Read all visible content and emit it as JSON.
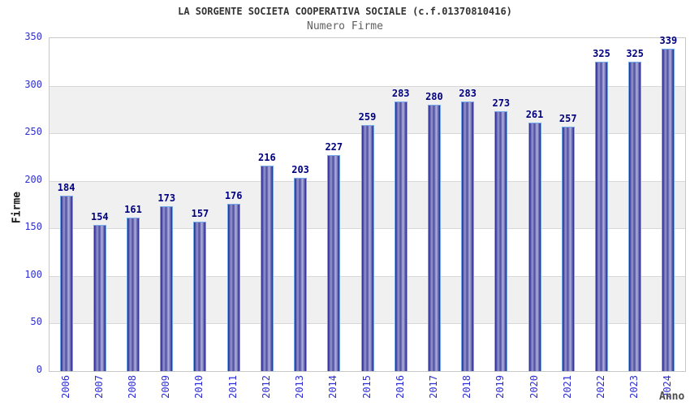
{
  "title": "LA SORGENTE SOCIETA COOPERATIVA SOCIALE (c.f.01370810416)",
  "subtitle": "Numero Firme",
  "chart_data": {
    "type": "bar",
    "title": "LA SORGENTE SOCIETA COOPERATIVA SOCIALE (c.f.01370810416)",
    "subtitle": "Numero Firme",
    "categories": [
      "2006",
      "2007",
      "2008",
      "2009",
      "2010",
      "2011",
      "2012",
      "2013",
      "2014",
      "2015",
      "2016",
      "2017",
      "2018",
      "2019",
      "2020",
      "2021",
      "2022",
      "2023",
      "2024"
    ],
    "values": [
      184,
      154,
      161,
      173,
      157,
      176,
      216,
      203,
      227,
      259,
      283,
      280,
      283,
      273,
      261,
      257,
      325,
      325,
      339
    ],
    "xlabel": "Anno",
    "ylabel": "Firme",
    "ylim": [
      0,
      350
    ],
    "ytick_step": 50,
    "yticks": [
      0,
      50,
      100,
      150,
      200,
      250,
      300,
      350
    ],
    "grid": true,
    "legend": "none",
    "colors": {
      "bar_dark": "#26268e",
      "bar_mid": "#4c4ca0",
      "bar_light1": "#9898d0",
      "bar_light2": "#b2b2de",
      "bar_border": "#74aaec",
      "value_label": "#00007e",
      "tick_label": "#2d2dd6",
      "band_fill": "#f0f0f0",
      "grid_line": "#d8d8d8",
      "plot_border": "#c8c8c8",
      "title_color": "#333333",
      "subtitle_color": "#606060",
      "axis_title_color": "#4d4d4d"
    }
  }
}
